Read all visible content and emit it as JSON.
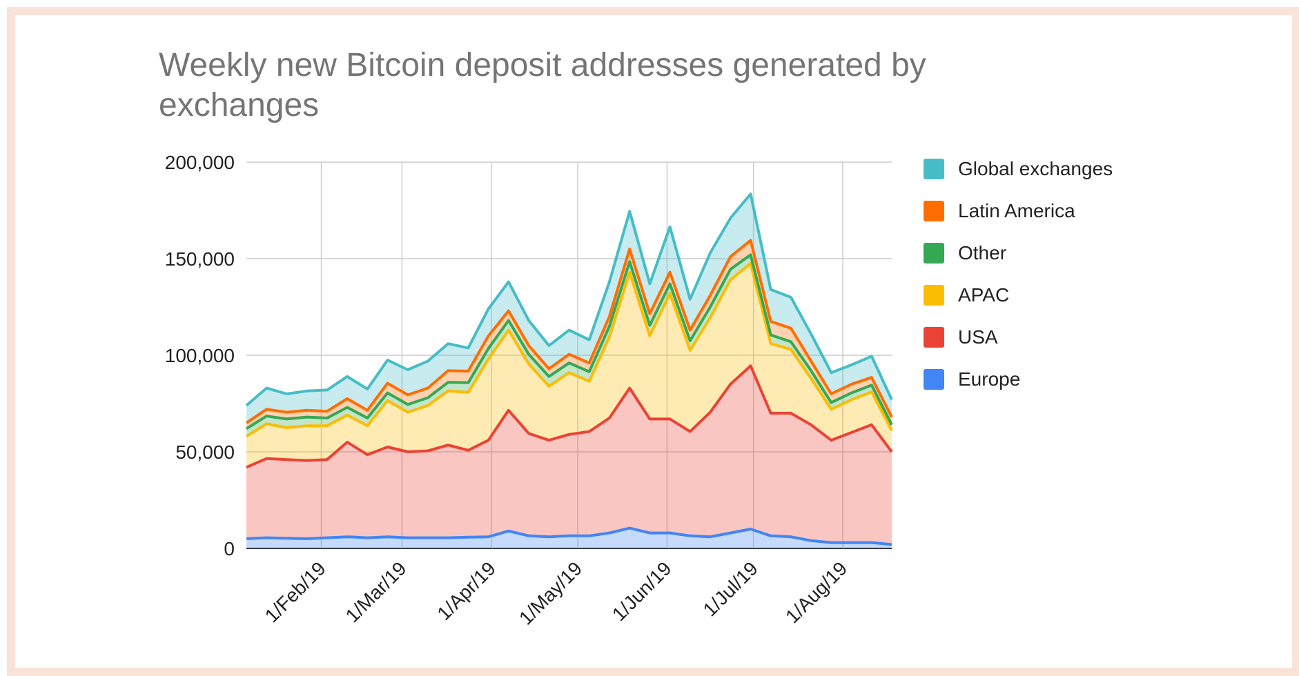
{
  "chart_data": {
    "type": "area",
    "stacked": true,
    "title": "Weekly new Bitcoin deposit addresses generated by exchanges",
    "xlabel": "",
    "ylabel": "",
    "ylim": [
      0,
      200000
    ],
    "yticks": [
      0,
      50000,
      100000,
      150000,
      200000
    ],
    "ytick_labels": [
      "0",
      "50,000",
      "100,000",
      "150,000",
      "200,000"
    ],
    "xtick_labels": [
      "1/Feb/19",
      "1/Mar/19",
      "1/Apr/19",
      "1/May/19",
      "1/Jun/19",
      "1/Jul/19",
      "1/Aug/19"
    ],
    "grid": true,
    "legend_position": "right",
    "x": [
      "2019-01-06",
      "2019-01-13",
      "2019-01-20",
      "2019-01-27",
      "2019-02-03",
      "2019-02-10",
      "2019-02-17",
      "2019-02-24",
      "2019-03-03",
      "2019-03-10",
      "2019-03-17",
      "2019-03-24",
      "2019-03-31",
      "2019-04-07",
      "2019-04-14",
      "2019-04-21",
      "2019-04-28",
      "2019-05-05",
      "2019-05-12",
      "2019-05-19",
      "2019-05-26",
      "2019-06-02",
      "2019-06-09",
      "2019-06-16",
      "2019-06-23",
      "2019-06-30",
      "2019-07-07",
      "2019-07-14",
      "2019-07-21",
      "2019-07-28",
      "2019-08-04",
      "2019-08-11",
      "2019-08-18"
    ],
    "series": [
      {
        "name": "Europe",
        "color": "#4285f4",
        "values": [
          5000,
          5500,
          5200,
          5000,
          5500,
          6000,
          5500,
          6000,
          5500,
          5500,
          5500,
          5800,
          6000,
          9000,
          6500,
          6000,
          6500,
          6500,
          8000,
          10500,
          8000,
          8000,
          6500,
          6000,
          8000,
          10000,
          6500,
          6000,
          4000,
          3000,
          3000,
          3000,
          2000
        ]
      },
      {
        "name": "USA",
        "color": "#ea4335",
        "values": [
          37000,
          41000,
          40800,
          40500,
          40500,
          49000,
          43000,
          46500,
          44500,
          45000,
          48000,
          45000,
          50000,
          62500,
          53000,
          50000,
          52500,
          54000,
          59500,
          72500,
          59000,
          59000,
          54000,
          64500,
          77000,
          84500,
          63500,
          64000,
          60000,
          53000,
          57000,
          61000,
          48000
        ]
      },
      {
        "name": "APAC",
        "color": "#fbbc04",
        "values": [
          16000,
          18000,
          16500,
          18000,
          17500,
          14000,
          15000,
          24000,
          20500,
          23500,
          28000,
          30000,
          42000,
          41500,
          36000,
          28000,
          32000,
          26000,
          42000,
          60000,
          43000,
          65000,
          42000,
          49000,
          54000,
          53000,
          36000,
          33000,
          24000,
          16000,
          17000,
          17000,
          11000
        ]
      },
      {
        "name": "Other",
        "color": "#34a853",
        "values": [
          4000,
          4000,
          4500,
          4500,
          4000,
          4000,
          4000,
          4000,
          4000,
          4000,
          4500,
          5000,
          5500,
          5000,
          5000,
          5000,
          5000,
          5000,
          5500,
          5500,
          5500,
          5000,
          5000,
          5500,
          5500,
          4500,
          4500,
          4000,
          4000,
          3500,
          3500,
          3500,
          3000
        ]
      },
      {
        "name": "Latin America",
        "color": "#ff6d01",
        "values": [
          3000,
          3500,
          3500,
          3500,
          3500,
          4500,
          4000,
          5000,
          5000,
          5000,
          6000,
          6000,
          6500,
          5000,
          4500,
          4000,
          4500,
          4500,
          5000,
          6500,
          6000,
          6000,
          5500,
          6000,
          6500,
          7500,
          7000,
          7000,
          5000,
          4500,
          4500,
          4000,
          4000
        ]
      },
      {
        "name": "Global exchanges",
        "color": "#46bdc6",
        "values": [
          9000,
          11000,
          9500,
          10000,
          11000,
          11500,
          11000,
          12000,
          13000,
          14000,
          14000,
          12000,
          14000,
          15000,
          13000,
          12000,
          12500,
          12000,
          18000,
          19500,
          15500,
          23500,
          16000,
          22000,
          20000,
          24000,
          16500,
          16000,
          14000,
          11000,
          10000,
          11000,
          9000
        ]
      }
    ]
  }
}
